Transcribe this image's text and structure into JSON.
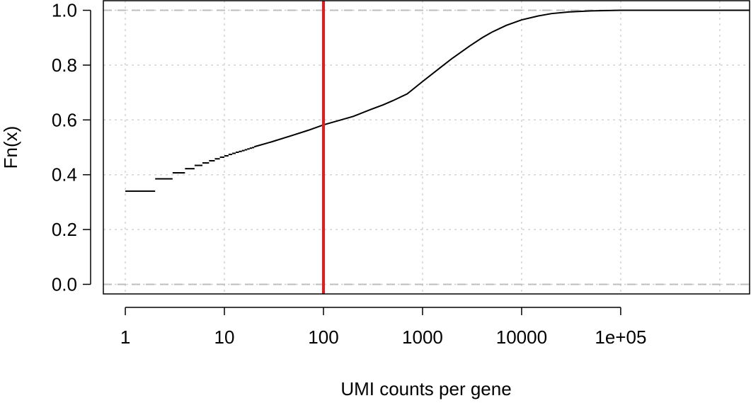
{
  "chart_data": {
    "type": "line",
    "title": "",
    "xlabel": "UMI counts per gene",
    "ylabel": "Fn(x)",
    "x_scale": "log10",
    "xlim": [
      0.6,
      2000000
    ],
    "ylim": [
      -0.035,
      1.035
    ],
    "x_ticks": [
      {
        "value": 1,
        "label": "1"
      },
      {
        "value": 10,
        "label": "10"
      },
      {
        "value": 100,
        "label": "100"
      },
      {
        "value": 1000,
        "label": "1000"
      },
      {
        "value": 10000,
        "label": "10000"
      },
      {
        "value": 100000,
        "label": "1e+05"
      }
    ],
    "x_grid_values": [
      1,
      10,
      100,
      1000,
      10000,
      100000,
      1000000
    ],
    "y_ticks": [
      {
        "value": 0,
        "label": "0.0"
      },
      {
        "value": 0.2,
        "label": "0.2"
      },
      {
        "value": 0.4,
        "label": "0.4"
      },
      {
        "value": 0.6,
        "label": "0.6"
      },
      {
        "value": 0.8,
        "label": "0.8"
      },
      {
        "value": 1,
        "label": "1.0"
      }
    ],
    "grid": true,
    "reference_hlines": [
      0,
      1
    ],
    "vline": {
      "x": 100,
      "color": "#e41a1c"
    },
    "steps": [
      {
        "x": 1,
        "y": 0.34
      },
      {
        "x": 2,
        "y": 0.385
      },
      {
        "x": 3,
        "y": 0.407
      },
      {
        "x": 4,
        "y": 0.422
      },
      {
        "x": 5,
        "y": 0.434
      },
      {
        "x": 6,
        "y": 0.443
      },
      {
        "x": 7,
        "y": 0.451
      },
      {
        "x": 8,
        "y": 0.458
      },
      {
        "x": 9,
        "y": 0.464
      },
      {
        "x": 10,
        "y": 0.469
      },
      {
        "x": 11,
        "y": 0.474
      },
      {
        "x": 12,
        "y": 0.478
      },
      {
        "x": 13,
        "y": 0.482
      },
      {
        "x": 14,
        "y": 0.485
      },
      {
        "x": 15,
        "y": 0.488
      },
      {
        "x": 16,
        "y": 0.491
      },
      {
        "x": 17,
        "y": 0.494
      },
      {
        "x": 18,
        "y": 0.497
      },
      {
        "x": 19,
        "y": 0.499
      }
    ],
    "curve": [
      {
        "x": 20,
        "y": 0.502
      },
      {
        "x": 30,
        "y": 0.52
      },
      {
        "x": 50,
        "y": 0.545
      },
      {
        "x": 70,
        "y": 0.562
      },
      {
        "x": 100,
        "y": 0.582
      },
      {
        "x": 150,
        "y": 0.6
      },
      {
        "x": 200,
        "y": 0.613
      },
      {
        "x": 300,
        "y": 0.638
      },
      {
        "x": 400,
        "y": 0.655
      },
      {
        "x": 500,
        "y": 0.67
      },
      {
        "x": 700,
        "y": 0.695
      },
      {
        "x": 1000,
        "y": 0.74
      },
      {
        "x": 1500,
        "y": 0.79
      },
      {
        "x": 2000,
        "y": 0.825
      },
      {
        "x": 3000,
        "y": 0.87
      },
      {
        "x": 4000,
        "y": 0.9
      },
      {
        "x": 5000,
        "y": 0.92
      },
      {
        "x": 7000,
        "y": 0.945
      },
      {
        "x": 10000,
        "y": 0.965
      },
      {
        "x": 15000,
        "y": 0.98
      },
      {
        "x": 20000,
        "y": 0.988
      },
      {
        "x": 30000,
        "y": 0.994
      },
      {
        "x": 50000,
        "y": 0.998
      },
      {
        "x": 100000,
        "y": 1.0
      },
      {
        "x": 2000000,
        "y": 1.0
      }
    ],
    "colors": {
      "line": "#000000",
      "vline": "#e41a1c",
      "grid": "#d3d3d3",
      "refline": "#bebebe",
      "frame": "#000000"
    }
  }
}
